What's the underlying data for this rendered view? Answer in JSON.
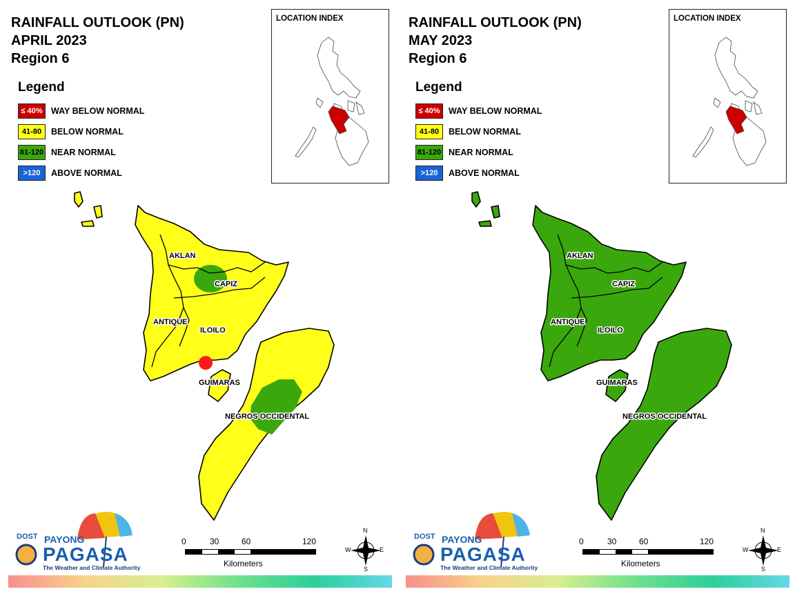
{
  "colors": {
    "way_below_normal": "#cc0000",
    "below_normal": "#ffff1a",
    "near_normal": "#3aa80c",
    "above_normal": "#1a63d6",
    "inset_highlight": "#cc0000"
  },
  "legend": {
    "title": "Legend",
    "items": [
      {
        "range": "≤ 40%",
        "label": "WAY BELOW NORMAL"
      },
      {
        "range": "41-80",
        "label": "BELOW NORMAL"
      },
      {
        "range": "81-120",
        "label": "NEAR NORMAL"
      },
      {
        "range": ">120",
        "label": "ABOVE NORMAL"
      }
    ]
  },
  "inset": {
    "title": "LOCATION INDEX"
  },
  "provinces": [
    "AKLAN",
    "CAPIZ",
    "ANTIQUE",
    "ILOILO",
    "GUIMARAS",
    "NEGROS OCCIDENTAL"
  ],
  "scale": {
    "ticks": [
      "0",
      "30",
      "60",
      "120"
    ],
    "unit": "Kilometers"
  },
  "compass": {
    "n": "N",
    "e": "E",
    "s": "S",
    "w": "W",
    "icon": "compass-rose-icon"
  },
  "logo": {
    "dost": "DOST",
    "payong": "PAYONG",
    "pagasa": "PAGASA",
    "tagline": "The Weather and Climate Authority"
  },
  "maps": [
    {
      "title_line1": "RAINFALL OUTLOOK (PN)",
      "title_line2": "APRIL 2023",
      "title_line3": "Region 6",
      "base_category": "BELOW NORMAL",
      "near_normal_areas": [
        "CAPIZ",
        "NEGROS OCCIDENTAL"
      ],
      "way_below_normal_areas": [
        "ILOILO"
      ]
    },
    {
      "title_line1": "RAINFALL OUTLOOK (PN)",
      "title_line2": "MAY 2023",
      "title_line3": "Region 6",
      "base_category": "NEAR NORMAL",
      "near_normal_areas": [],
      "way_below_normal_areas": []
    }
  ]
}
